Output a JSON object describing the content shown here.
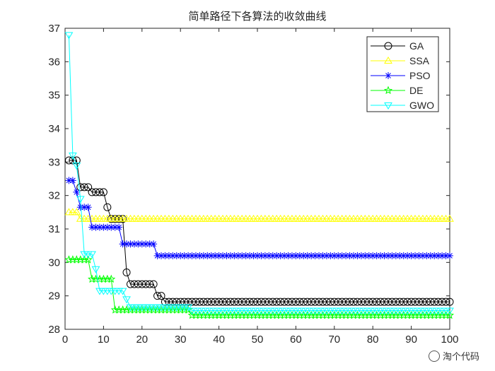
{
  "chart_data": {
    "type": "line",
    "title": "简单路径下各算法的收敛曲线",
    "xlabel": "",
    "ylabel": "",
    "xlim": [
      0,
      100
    ],
    "ylim": [
      28,
      37
    ],
    "xticks": [
      0,
      10,
      20,
      30,
      40,
      50,
      60,
      70,
      80,
      90,
      100
    ],
    "yticks": [
      28,
      29,
      30,
      31,
      32,
      33,
      34,
      35,
      36,
      37
    ],
    "grid": false,
    "legend_position": "top-right",
    "series": [
      {
        "name": "GA",
        "color": "#000000",
        "marker": "circle",
        "steps": [
          [
            1,
            33.05
          ],
          [
            4,
            32.25
          ],
          [
            7,
            32.1
          ],
          [
            11,
            31.65
          ],
          [
            12,
            31.3
          ],
          [
            16,
            29.7
          ],
          [
            17,
            29.35
          ],
          [
            24,
            29.0
          ],
          [
            26,
            28.82
          ]
        ]
      },
      {
        "name": "SSA",
        "color": "#ffff00",
        "marker": "triangle-up",
        "steps": [
          [
            1,
            31.5
          ],
          [
            4,
            31.3
          ]
        ]
      },
      {
        "name": "PSO",
        "color": "#0000ff",
        "marker": "asterisk",
        "steps": [
          [
            1,
            32.45
          ],
          [
            3,
            32.1
          ],
          [
            4,
            31.65
          ],
          [
            7,
            31.05
          ],
          [
            15,
            30.55
          ],
          [
            24,
            30.2
          ]
        ]
      },
      {
        "name": "DE",
        "color": "#00ff00",
        "marker": "pentagram",
        "steps": [
          [
            1,
            30.08
          ],
          [
            7,
            29.5
          ],
          [
            13,
            28.58
          ],
          [
            33,
            28.42
          ]
        ]
      },
      {
        "name": "GWO",
        "color": "#00ffff",
        "marker": "triangle-down",
        "steps": [
          [
            1,
            36.8
          ],
          [
            2,
            33.2
          ],
          [
            3,
            32.9
          ],
          [
            4,
            31.9
          ],
          [
            5,
            30.25
          ],
          [
            8,
            29.8
          ],
          [
            9,
            29.15
          ],
          [
            16,
            28.9
          ],
          [
            17,
            28.66
          ],
          [
            33,
            28.56
          ]
        ]
      }
    ]
  },
  "watermark": {
    "text": "淘个代码"
  }
}
